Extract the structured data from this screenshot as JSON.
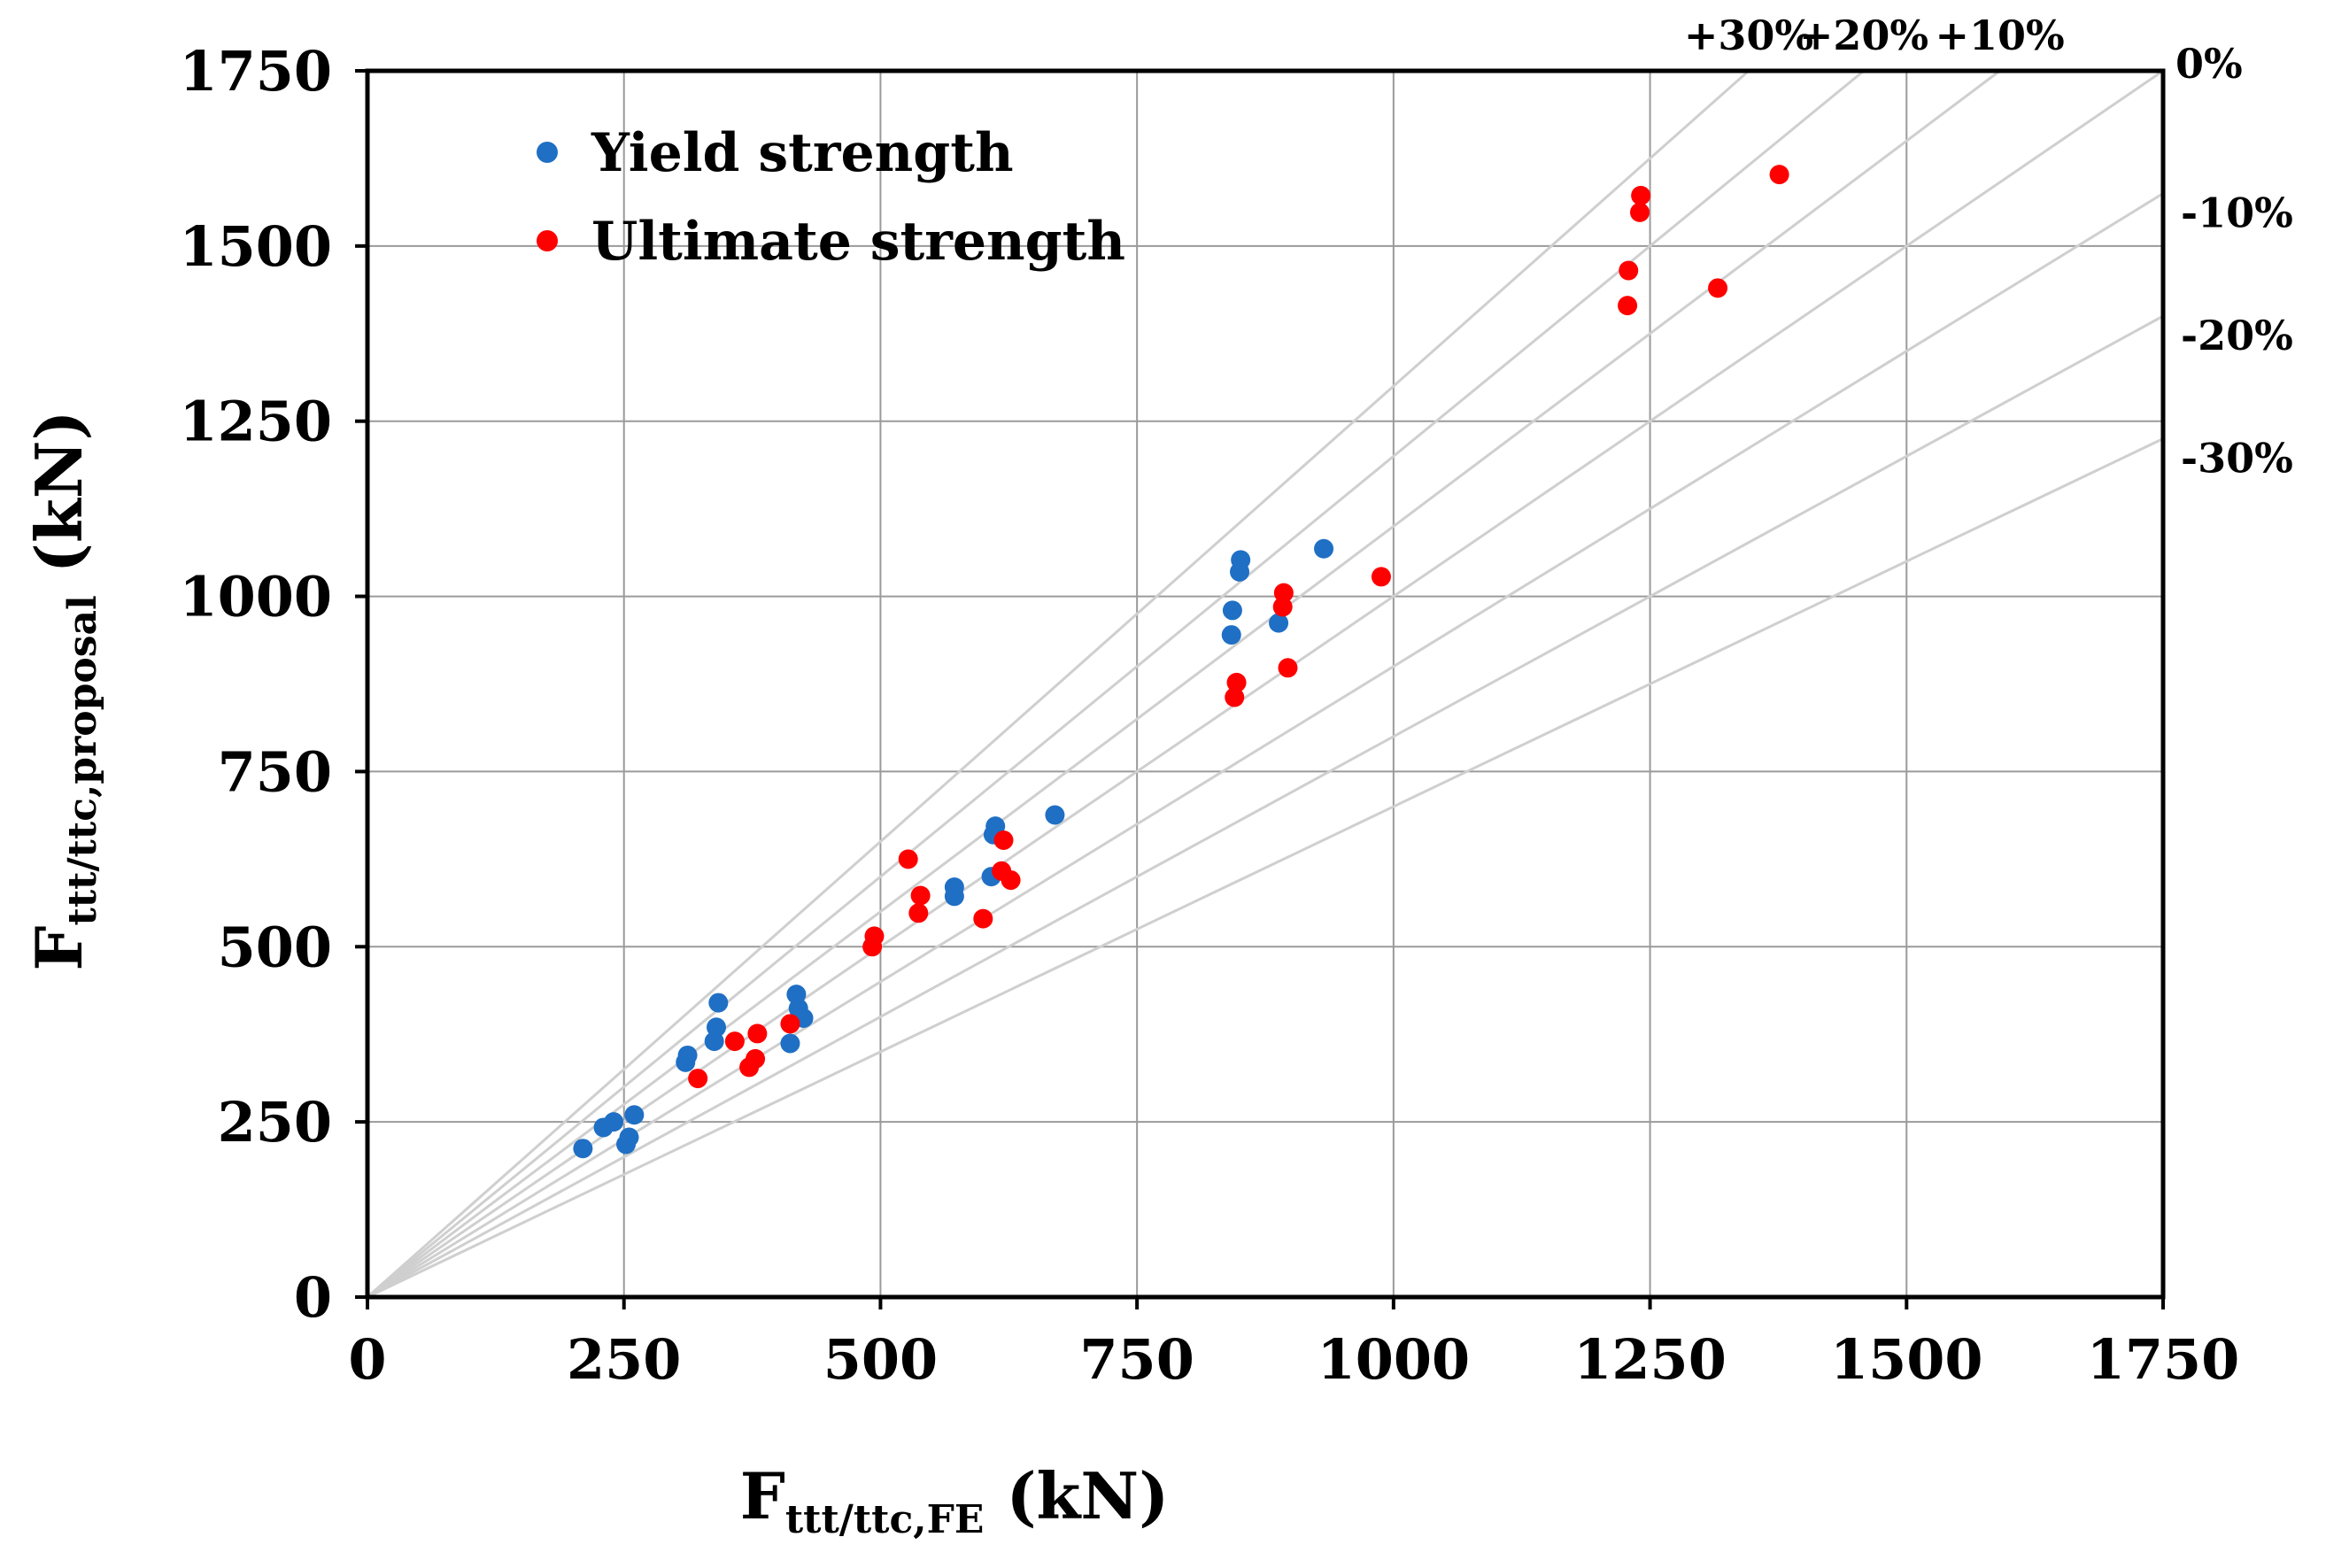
{
  "chart_data": {
    "type": "scatter",
    "xlabel_main": "F",
    "xlabel_sub": "ttt/ttc,FE",
    "xlabel_unit": " (kN)",
    "ylabel_main": "F",
    "ylabel_sub": "ttt/ttc,proposal",
    "ylabel_unit": " (kN)",
    "xlim": [
      0,
      1750
    ],
    "ylim": [
      0,
      1750
    ],
    "x_ticks": [
      0,
      250,
      500,
      750,
      1000,
      1250,
      1500,
      1750
    ],
    "y_ticks": [
      0,
      250,
      500,
      750,
      1000,
      1250,
      1500,
      1750
    ],
    "x_tick_labels": [
      "0",
      "250",
      "500",
      "750",
      "1000",
      "1250",
      "1500",
      "1750"
    ],
    "y_tick_labels": [
      "0",
      "250",
      "500",
      "750",
      "1000",
      "1250",
      "1500",
      "1750"
    ],
    "grid": true,
    "legend_position": "top-left",
    "reference_lines": [
      {
        "ratio": 1.3,
        "label": "+30%"
      },
      {
        "ratio": 1.2,
        "label": "+20%"
      },
      {
        "ratio": 1.1,
        "label": "+10%"
      },
      {
        "ratio": 1.0,
        "label": "0%"
      },
      {
        "ratio": 0.9,
        "label": "-10%"
      },
      {
        "ratio": 0.8,
        "label": "-20%"
      },
      {
        "ratio": 0.7,
        "label": "-30%"
      }
    ],
    "series": [
      {
        "name": "Yield strength",
        "color": "#1f6fc5",
        "points": [
          [
            210,
            212
          ],
          [
            230,
            242
          ],
          [
            240,
            250
          ],
          [
            252,
            218
          ],
          [
            255,
            228
          ],
          [
            260,
            260
          ],
          [
            310,
            335
          ],
          [
            312,
            345
          ],
          [
            338,
            365
          ],
          [
            340,
            385
          ],
          [
            342,
            420
          ],
          [
            412,
            362
          ],
          [
            418,
            432
          ],
          [
            420,
            412
          ],
          [
            425,
            398
          ],
          [
            572,
            572
          ],
          [
            572,
            585
          ],
          [
            608,
            600
          ],
          [
            610,
            660
          ],
          [
            612,
            672
          ],
          [
            670,
            688
          ],
          [
            842,
            945
          ],
          [
            843,
            980
          ],
          [
            850,
            1035
          ],
          [
            851,
            1052
          ],
          [
            888,
            962
          ],
          [
            932,
            1068
          ]
        ]
      },
      {
        "name": "Ultimate strength",
        "color": "#ff0000",
        "points": [
          [
            322,
            312
          ],
          [
            358,
            365
          ],
          [
            372,
            328
          ],
          [
            378,
            340
          ],
          [
            380,
            376
          ],
          [
            412,
            390
          ],
          [
            492,
            500
          ],
          [
            494,
            515
          ],
          [
            527,
            625
          ],
          [
            537,
            548
          ],
          [
            539,
            573
          ],
          [
            600,
            540
          ],
          [
            618,
            608
          ],
          [
            620,
            652
          ],
          [
            627,
            595
          ],
          [
            845,
            856
          ],
          [
            847,
            877
          ],
          [
            892,
            985
          ],
          [
            893,
            1005
          ],
          [
            897,
            898
          ],
          [
            988,
            1028
          ],
          [
            1228,
            1415
          ],
          [
            1229,
            1465
          ],
          [
            1240,
            1548
          ],
          [
            1241,
            1572
          ],
          [
            1316,
            1440
          ],
          [
            1376,
            1602
          ]
        ]
      }
    ]
  }
}
